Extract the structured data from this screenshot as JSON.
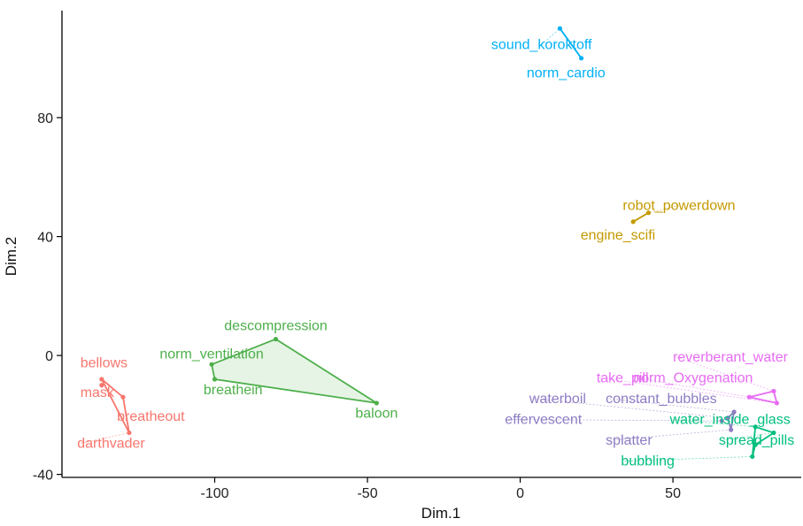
{
  "chart_data": {
    "type": "scatter",
    "title": "",
    "xlabel": "Dim.1",
    "ylabel": "Dim.2",
    "xlim": [
      -150,
      92
    ],
    "ylim": [
      -41,
      116
    ],
    "xticks": [
      -100,
      -50,
      0,
      50
    ],
    "yticks": [
      -40,
      0,
      40,
      80
    ],
    "grid": false,
    "legend": "none",
    "series": [
      {
        "color": "#F8766D",
        "hull": [
          [
            -137,
            -8
          ],
          [
            -128,
            -26
          ],
          [
            -130,
            -14
          ]
        ],
        "hull_filled": false,
        "points": [
          {
            "label": "bellows",
            "x": -137,
            "y": -8
          },
          {
            "label": "mask",
            "x": -137,
            "y": -10
          },
          {
            "label": "breatheout",
            "x": -130,
            "y": -14
          },
          {
            "label": "darthvader",
            "x": -128,
            "y": -26
          }
        ]
      },
      {
        "color": "#4DAF4A",
        "hull": [
          [
            -80,
            5.5
          ],
          [
            -47,
            -16
          ],
          [
            -100,
            -8
          ],
          [
            -101,
            -3
          ]
        ],
        "hull_filled": true,
        "points": [
          {
            "label": "descompression",
            "x": -80,
            "y": 5.5
          },
          {
            "label": "norm_ventilation",
            "x": -101,
            "y": -3
          },
          {
            "label": "breathein",
            "x": -100,
            "y": -8
          },
          {
            "label": "baloon",
            "x": -47,
            "y": -16
          }
        ]
      },
      {
        "color": "#00B0F6",
        "hull": [
          [
            13,
            110
          ],
          [
            20,
            100
          ]
        ],
        "hull_filled": false,
        "points": [
          {
            "label": "sound_koroktoff",
            "x": 13,
            "y": 110
          },
          {
            "label": "norm_cardio",
            "x": 20,
            "y": 100
          }
        ]
      },
      {
        "color": "#C49A00",
        "hull": [
          [
            37,
            45
          ],
          [
            42,
            48
          ]
        ],
        "hull_filled": false,
        "points": [
          {
            "label": "robot_powerdown",
            "x": 42,
            "y": 48
          },
          {
            "label": "engine_scifi",
            "x": 37,
            "y": 45
          }
        ]
      },
      {
        "color": "#E76BF3",
        "hull": [
          [
            75,
            -14
          ],
          [
            83,
            -12
          ],
          [
            84,
            -16
          ]
        ],
        "hull_filled": false,
        "points": [
          {
            "label": "reverberant_water",
            "x": 83,
            "y": -12
          },
          {
            "label": "take_pill",
            "x": 84,
            "y": -16
          },
          {
            "label": "norm_Oxygenation",
            "x": 75,
            "y": -14
          }
        ]
      },
      {
        "color": "#8E7CC3",
        "hull": [
          [
            68,
            -21
          ],
          [
            70,
            -19
          ],
          [
            69,
            -25
          ]
        ],
        "hull_filled": false,
        "points": [
          {
            "label": "waterboil",
            "x": 68,
            "y": -21
          },
          {
            "label": "constant_bubbles",
            "x": 70,
            "y": -19
          },
          {
            "label": "effervescent",
            "x": 66,
            "y": -22
          },
          {
            "label": "splatter",
            "x": 69,
            "y": -25
          }
        ]
      },
      {
        "color": "#00BF7D",
        "hull": [
          [
            77,
            -24
          ],
          [
            83,
            -26
          ],
          [
            77,
            -30
          ],
          [
            76,
            -34
          ]
        ],
        "hull_filled": false,
        "points": [
          {
            "label": "water_inside_glass",
            "x": 77,
            "y": -24
          },
          {
            "label": "spread_pills",
            "x": 83,
            "y": -26
          },
          {
            "label": "bubbling",
            "x": 76,
            "y": -34
          },
          {
            "label": "",
            "x": 77,
            "y": -30
          }
        ]
      }
    ],
    "labels": [
      {
        "text": "bellows",
        "x": -144,
        "y": -4,
        "color": "#F8766D",
        "anchor": "start",
        "ax": -137,
        "ay": -8
      },
      {
        "text": "mask",
        "x": -144,
        "y": -14,
        "color": "#F8766D",
        "anchor": "start",
        "ax": -137,
        "ay": -10
      },
      {
        "text": "breatheout",
        "x": -132,
        "y": -22,
        "color": "#F8766D",
        "anchor": "start",
        "ax": -130,
        "ay": -14
      },
      {
        "text": "darthvader",
        "x": -145,
        "y": -31,
        "color": "#F8766D",
        "anchor": "start",
        "ax": -128,
        "ay": -26
      },
      {
        "text": "descompression",
        "x": -80,
        "y": 8.5,
        "color": "#4DAF4A",
        "anchor": "middle",
        "ax": -80,
        "ay": 5.5
      },
      {
        "text": "norm_ventilation",
        "x": -101,
        "y": -1,
        "color": "#4DAF4A",
        "anchor": "middle",
        "ax": -101,
        "ay": -3
      },
      {
        "text": "breathein",
        "x": -94,
        "y": -13,
        "color": "#4DAF4A",
        "anchor": "middle",
        "ax": -100,
        "ay": -8
      },
      {
        "text": "baloon",
        "x": -47,
        "y": -21,
        "color": "#4DAF4A",
        "anchor": "middle",
        "ax": -47,
        "ay": -16
      },
      {
        "text": "sound_koroktoff",
        "x": 7,
        "y": 103,
        "color": "#00B0F6",
        "anchor": "middle",
        "ax": 13,
        "ay": 110
      },
      {
        "text": "norm_cardio",
        "x": 15,
        "y": 93.5,
        "color": "#00B0F6",
        "anchor": "middle",
        "ax": 20,
        "ay": 100
      },
      {
        "text": "robot_powerdown",
        "x": 52,
        "y": 49,
        "color": "#C49A00",
        "anchor": "middle",
        "ax": 42,
        "ay": 48
      },
      {
        "text": "engine_scifi",
        "x": 32,
        "y": 39,
        "color": "#C49A00",
        "anchor": "middle",
        "ax": 37,
        "ay": 45
      },
      {
        "text": "reverberant_water",
        "x": 50,
        "y": -2,
        "color": "#E76BF3",
        "anchor": "start",
        "ax": 83,
        "ay": -12
      },
      {
        "text": "take_pill",
        "x": 25,
        "y": -9,
        "color": "#E76BF3",
        "anchor": "start",
        "ax": 84,
        "ay": -16
      },
      {
        "text": "norm_Oxygenation",
        "x": 37,
        "y": -9,
        "color": "#E76BF3",
        "anchor": "start",
        "ax": 75,
        "ay": -14
      },
      {
        "text": "waterboil",
        "x": 3,
        "y": -16,
        "color": "#8E7CC3",
        "anchor": "start",
        "ax": 68,
        "ay": -21
      },
      {
        "text": "constant_bubbles",
        "x": 28,
        "y": -16,
        "color": "#8E7CC3",
        "anchor": "start",
        "ax": 70,
        "ay": -19
      },
      {
        "text": "effervescent",
        "x": -5,
        "y": -23,
        "color": "#8E7CC3",
        "anchor": "start",
        "ax": 66,
        "ay": -22
      },
      {
        "text": "splatter",
        "x": 28,
        "y": -30,
        "color": "#8E7CC3",
        "anchor": "start",
        "ax": 69,
        "ay": -25
      },
      {
        "text": "water_inside_glass",
        "x": 49,
        "y": -23,
        "color": "#00BF7D",
        "anchor": "start",
        "ax": 77,
        "ay": -24
      },
      {
        "text": "spread_pills",
        "x": 65,
        "y": -30,
        "color": "#00BF7D",
        "anchor": "start",
        "ax": 83,
        "ay": -26
      },
      {
        "text": "bubbling",
        "x": 33,
        "y": -37,
        "color": "#00BF7D",
        "anchor": "start",
        "ax": 76,
        "ay": -34
      }
    ]
  }
}
